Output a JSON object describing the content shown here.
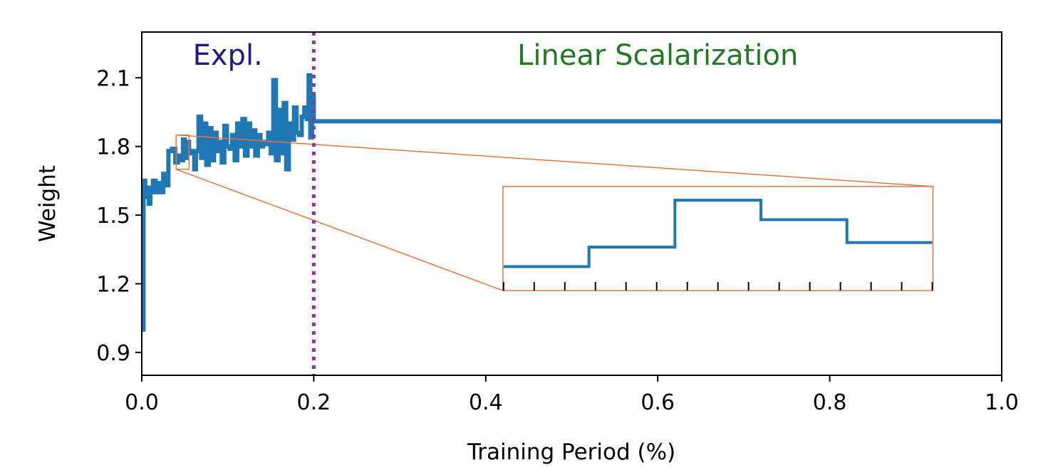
{
  "chart_data": {
    "type": "line",
    "title": "",
    "xlabel": "Training Period (%)",
    "ylabel": "Weight",
    "xlim": [
      0.0,
      1.0
    ],
    "ylim": [
      0.8,
      2.3
    ],
    "xticks": [
      0.0,
      0.2,
      0.4,
      0.6,
      0.8,
      1.0
    ],
    "xtick_labels": [
      "0.0",
      "0.2",
      "0.4",
      "0.6",
      "0.8",
      "1.0"
    ],
    "yticks": [
      0.9,
      1.2,
      1.5,
      1.8,
      2.1
    ],
    "ytick_labels": [
      "0.9",
      "1.2",
      "1.5",
      "1.8",
      "2.1"
    ],
    "grid": false,
    "series": [
      {
        "name": "Weight",
        "style": "step",
        "color": "#1f77b4",
        "x": [
          0.0,
          0.002,
          0.004,
          0.006,
          0.008,
          0.01,
          0.013,
          0.016,
          0.019,
          0.022,
          0.025,
          0.028,
          0.031,
          0.035,
          0.039,
          0.042,
          0.045,
          0.048,
          0.05,
          0.052,
          0.055,
          0.058,
          0.061,
          0.063,
          0.066,
          0.069,
          0.072,
          0.075,
          0.078,
          0.081,
          0.084,
          0.087,
          0.09,
          0.093,
          0.096,
          0.099,
          0.102,
          0.105,
          0.108,
          0.111,
          0.114,
          0.117,
          0.12,
          0.123,
          0.126,
          0.129,
          0.132,
          0.135,
          0.138,
          0.141,
          0.144,
          0.147,
          0.15,
          0.153,
          0.156,
          0.159,
          0.162,
          0.165,
          0.168,
          0.171,
          0.174,
          0.177,
          0.18,
          0.183,
          0.186,
          0.189,
          0.192,
          0.194,
          0.196,
          0.198,
          0.2,
          1.0
        ],
        "values": [
          1.0,
          1.65,
          1.58,
          1.62,
          1.55,
          1.6,
          1.65,
          1.6,
          1.64,
          1.6,
          1.68,
          1.63,
          1.78,
          1.79,
          1.73,
          1.76,
          1.74,
          1.83,
          1.75,
          1.82,
          1.77,
          1.78,
          1.7,
          1.78,
          1.93,
          1.75,
          1.9,
          1.72,
          1.88,
          1.74,
          1.86,
          1.78,
          1.82,
          1.73,
          1.89,
          1.8,
          1.79,
          1.85,
          1.74,
          1.9,
          1.8,
          1.92,
          1.76,
          1.9,
          1.8,
          1.87,
          1.76,
          1.85,
          1.8,
          1.82,
          1.81,
          1.86,
          1.77,
          2.09,
          1.74,
          1.96,
          1.77,
          1.99,
          1.7,
          1.9,
          1.83,
          1.97,
          1.86,
          1.85,
          1.93,
          1.97,
          1.92,
          2.11,
          1.84,
          2.02,
          1.91,
          1.91
        ]
      }
    ],
    "vline": {
      "x": 0.2,
      "style": "dotted",
      "color": "#8b3a9b"
    },
    "annotations": [
      {
        "text": "Expl.",
        "color": "#1a1a8c",
        "x": 0.1,
        "y": 2.2
      },
      {
        "text": "Linear Scalarization",
        "color": "#217a21",
        "x": 0.6,
        "y": 2.2
      }
    ],
    "inset": {
      "zoom_xlim": [
        0.04,
        0.055
      ],
      "zoom_ylim": [
        1.7,
        1.85
      ],
      "inset_xlim": [
        0.42,
        0.92
      ],
      "inset_ylim": [
        1.17,
        1.625
      ],
      "border_color": "#e8743b",
      "tick_count": 15,
      "steps": [
        1.275,
        1.36,
        1.565,
        1.48,
        1.38
      ]
    }
  }
}
